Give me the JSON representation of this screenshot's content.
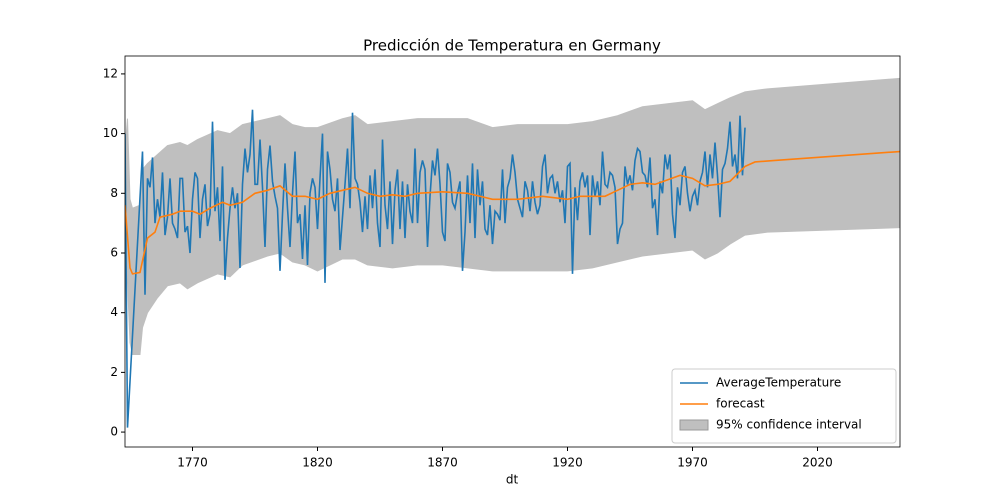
{
  "chart_data": {
    "type": "line",
    "title": "Predicción de Temperatura en Germany",
    "x_label": "dt",
    "xlim": [
      1743,
      2053
    ],
    "ylim": [
      -0.5,
      12.6
    ],
    "xticks": [
      1770,
      1820,
      1870,
      1920,
      1970,
      2020
    ],
    "yticks": [
      0,
      2,
      4,
      6,
      8,
      10,
      12
    ],
    "legend": "lower right",
    "series": [
      {
        "name": "AverageTemperature",
        "color": "#1f77b4",
        "x": [
          1743,
          1744,
          1750,
          1751,
          1752,
          1753,
          1754,
          1755,
          1756,
          1757,
          1758,
          1759,
          1760,
          1761,
          1762,
          1763,
          1764,
          1765,
          1766,
          1767,
          1768,
          1769,
          1770,
          1771,
          1772,
          1773,
          1774,
          1775,
          1776,
          1777,
          1778,
          1779,
          1780,
          1781,
          1782,
          1783,
          1784,
          1785,
          1786,
          1787,
          1788,
          1789,
          1790,
          1791,
          1792,
          1793,
          1794,
          1795,
          1796,
          1797,
          1798,
          1799,
          1800,
          1801,
          1802,
          1803,
          1804,
          1805,
          1806,
          1807,
          1808,
          1809,
          1810,
          1811,
          1812,
          1813,
          1814,
          1815,
          1816,
          1817,
          1818,
          1819,
          1820,
          1821,
          1822,
          1823,
          1824,
          1825,
          1826,
          1827,
          1828,
          1829,
          1830,
          1831,
          1832,
          1833,
          1834,
          1835,
          1836,
          1837,
          1838,
          1839,
          1840,
          1841,
          1842,
          1843,
          1844,
          1845,
          1846,
          1847,
          1848,
          1849,
          1850,
          1851,
          1852,
          1853,
          1854,
          1855,
          1856,
          1857,
          1858,
          1859,
          1860,
          1861,
          1862,
          1863,
          1864,
          1865,
          1866,
          1867,
          1868,
          1869,
          1870,
          1871,
          1872,
          1873,
          1874,
          1875,
          1876,
          1877,
          1878,
          1879,
          1880,
          1881,
          1882,
          1883,
          1884,
          1885,
          1886,
          1887,
          1888,
          1889,
          1890,
          1891,
          1892,
          1893,
          1894,
          1895,
          1896,
          1897,
          1898,
          1899,
          1900,
          1901,
          1902,
          1903,
          1904,
          1905,
          1906,
          1907,
          1908,
          1909,
          1910,
          1911,
          1912,
          1913,
          1914,
          1915,
          1916,
          1917,
          1918,
          1919,
          1920,
          1921,
          1922,
          1923,
          1924,
          1925,
          1926,
          1927,
          1928,
          1929,
          1930,
          1931,
          1932,
          1933,
          1934,
          1935,
          1936,
          1937,
          1938,
          1939,
          1940,
          1941,
          1942,
          1943,
          1944,
          1945,
          1946,
          1947,
          1948,
          1949,
          1950,
          1951,
          1952,
          1953,
          1954,
          1955,
          1956,
          1957,
          1958,
          1959,
          1960,
          1961,
          1962,
          1963,
          1964,
          1965,
          1966,
          1967,
          1968,
          1969,
          1970,
          1971,
          1972,
          1973,
          1974,
          1975,
          1976,
          1977,
          1978,
          1979,
          1980,
          1981,
          1982,
          1983,
          1984,
          1985,
          1986,
          1987,
          1988,
          1989,
          1990,
          1991
        ],
        "values": [
          10.0,
          0.15,
          9.4,
          4.6,
          8.5,
          8.2,
          9.2,
          7.0,
          7.8,
          7.2,
          8.7,
          6.6,
          7.2,
          8.5,
          7.0,
          6.8,
          6.5,
          8.5,
          8.5,
          6.7,
          6.9,
          6.0,
          7.8,
          8.7,
          8.5,
          6.5,
          7.8,
          8.3,
          6.9,
          7.3,
          10.4,
          7.4,
          8.2,
          6.4,
          8.9,
          5.1,
          6.5,
          7.5,
          8.2,
          7.5,
          8.0,
          5.5,
          8.3,
          9.5,
          8.7,
          9.3,
          10.8,
          8.3,
          8.3,
          9.8,
          8.2,
          6.2,
          8.8,
          9.6,
          8.4,
          7.9,
          7.5,
          5.4,
          7.3,
          9.0,
          7.5,
          6.2,
          8.0,
          9.4,
          7.0,
          7.3,
          5.8,
          7.6,
          5.6,
          8.0,
          8.5,
          8.2,
          6.8,
          8.5,
          10.0,
          5.0,
          9.4,
          8.8,
          7.8,
          7.4,
          8.5,
          6.1,
          7.2,
          8.3,
          9.5,
          7.5,
          10.7,
          8.5,
          8.3,
          7.7,
          6.7,
          7.9,
          6.8,
          8.6,
          7.5,
          8.8,
          7.0,
          6.2,
          9.8,
          7.6,
          6.8,
          8.4,
          6.3,
          8.1,
          8.8,
          6.8,
          8.4,
          6.5,
          8.3,
          7.4,
          7.0,
          9.5,
          7.0,
          8.7,
          9.1,
          8.8,
          6.2,
          7.9,
          9.1,
          8.6,
          9.5,
          8.3,
          6.7,
          6.4,
          9.0,
          8.7,
          7.7,
          7.5,
          8.0,
          8.4,
          5.4,
          6.7,
          8.6,
          7.0,
          9.0,
          6.5,
          8.8,
          7.6,
          8.4,
          6.8,
          6.6,
          7.6,
          6.3,
          7.4,
          7.3,
          7.1,
          8.8,
          7.0,
          8.2,
          8.5,
          9.3,
          8.7,
          7.8,
          7.5,
          7.2,
          8.4,
          8.1,
          7.4,
          8.4,
          7.7,
          7.3,
          7.6,
          8.9,
          9.3,
          8.0,
          8.5,
          8.6,
          8.0,
          8.4,
          7.7,
          8.1,
          7.0,
          8.9,
          9.0,
          5.3,
          8.2,
          7.1,
          8.4,
          8.7,
          8.2,
          8.6,
          6.6,
          8.6,
          7.9,
          8.4,
          7.6,
          9.4,
          8.3,
          8.2,
          8.7,
          8.6,
          8.2,
          6.3,
          6.8,
          7.0,
          8.9,
          8.3,
          8.6,
          8.1,
          9.1,
          9.5,
          9.4,
          8.7,
          8.6,
          8.2,
          9.2,
          7.5,
          7.8,
          6.6,
          8.4,
          8.0,
          9.3,
          8.8,
          9.3,
          7.3,
          6.5,
          8.2,
          7.6,
          8.7,
          8.9,
          8.0,
          7.4,
          7.9,
          8.1,
          7.6,
          8.4,
          8.7,
          9.4,
          8.2,
          9.3,
          8.5,
          9.7,
          8.6,
          7.2,
          8.8,
          9.0,
          9.5,
          10.4,
          8.9,
          9.3,
          8.5,
          10.6,
          8.6,
          10.2
        ]
      },
      {
        "name": "forecast",
        "color": "#ff7f0e",
        "x": [
          1743,
          1745,
          1746,
          1749,
          1752,
          1755,
          1757,
          1762,
          1765,
          1770,
          1773,
          1777,
          1782,
          1785,
          1790,
          1795,
          1800,
          1805,
          1810,
          1815,
          1820,
          1825,
          1830,
          1835,
          1840,
          1845,
          1850,
          1855,
          1860,
          1870,
          1880,
          1885,
          1890,
          1900,
          1910,
          1920,
          1925,
          1935,
          1940,
          1945,
          1950,
          1955,
          1960,
          1965,
          1970,
          1975,
          1980,
          1985,
          1991,
          1995,
          2003,
          2053
        ],
        "values": [
          7.6,
          5.5,
          5.3,
          5.35,
          6.5,
          6.7,
          7.2,
          7.3,
          7.4,
          7.4,
          7.3,
          7.5,
          7.7,
          7.6,
          7.7,
          8.0,
          8.1,
          8.25,
          7.9,
          7.9,
          7.8,
          8.0,
          8.1,
          8.2,
          8.0,
          7.9,
          7.95,
          7.9,
          8.0,
          8.05,
          8.0,
          7.9,
          7.8,
          7.8,
          7.9,
          7.8,
          7.9,
          7.9,
          8.1,
          8.3,
          8.35,
          8.3,
          8.45,
          8.6,
          8.5,
          8.25,
          8.3,
          8.4,
          8.9,
          9.05,
          9.1,
          9.4
        ]
      }
    ],
    "band": {
      "name": "95% confidence interval",
      "color": "#bfbfbf",
      "x": [
        1743,
        1744,
        1745,
        1746,
        1749,
        1750,
        1752,
        1756,
        1760,
        1765,
        1768,
        1772,
        1780,
        1785,
        1790,
        1800,
        1805,
        1810,
        1815,
        1820,
        1830,
        1835,
        1840,
        1850,
        1860,
        1870,
        1880,
        1890,
        1900,
        1910,
        1920,
        1930,
        1940,
        1950,
        1960,
        1970,
        1975,
        1980,
        1985,
        1991,
        2000,
        2053
      ],
      "lower": [
        7.0,
        5.0,
        3.0,
        2.6,
        2.6,
        3.5,
        4.0,
        4.5,
        4.9,
        5.0,
        4.8,
        5.0,
        5.3,
        5.2,
        5.6,
        5.9,
        6.0,
        5.7,
        5.6,
        5.4,
        5.8,
        5.8,
        5.6,
        5.5,
        5.6,
        5.6,
        5.5,
        5.4,
        5.4,
        5.4,
        5.4,
        5.5,
        5.7,
        5.9,
        6.0,
        6.1,
        5.8,
        6.0,
        6.3,
        6.6,
        6.7,
        6.85
      ],
      "upper": [
        9.5,
        10.5,
        7.8,
        7.5,
        7.6,
        8.8,
        9.0,
        9.3,
        9.6,
        9.7,
        9.6,
        9.8,
        10.1,
        10.0,
        10.3,
        10.5,
        10.6,
        10.3,
        10.2,
        10.2,
        10.5,
        10.6,
        10.3,
        10.4,
        10.5,
        10.5,
        10.5,
        10.2,
        10.3,
        10.3,
        10.3,
        10.4,
        10.6,
        10.9,
        11.0,
        11.1,
        10.8,
        11.0,
        11.2,
        11.4,
        11.5,
        11.85
      ]
    }
  }
}
